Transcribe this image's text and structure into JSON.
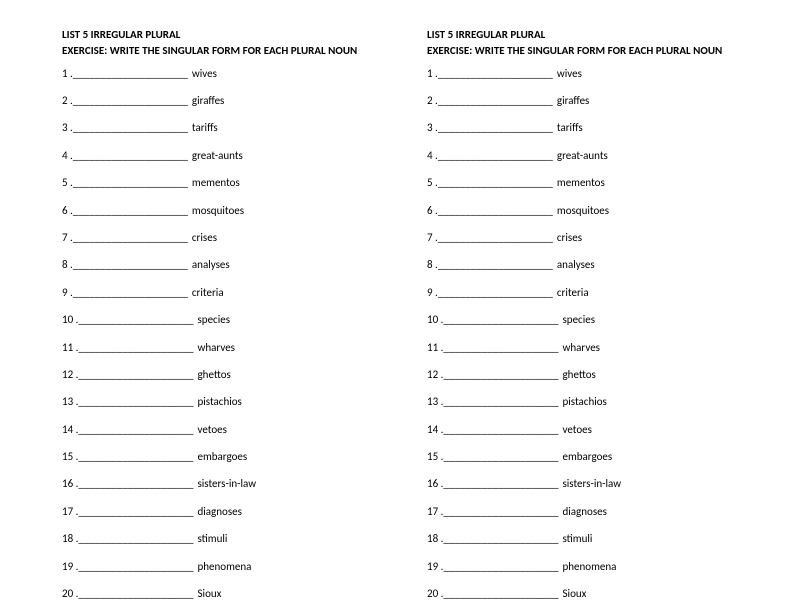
{
  "title": "LIST 5 IRREGULAR PLURAL",
  "subtitle": "EXERCISE: WRITE THE SINGULAR FORM   FOR EACH PLURAL NOUN",
  "blank": "_____________________",
  "items": [
    {
      "num": "1 .",
      "word": "wives"
    },
    {
      "num": "2 .",
      "word": "giraffes"
    },
    {
      "num": "3 .",
      "word": "tariffs"
    },
    {
      "num": "4 .",
      "word": "great-aunts"
    },
    {
      "num": "5 .",
      "word": "mementos"
    },
    {
      "num": "6 .",
      "word": "mosquitoes"
    },
    {
      "num": "7 .",
      "word": "crises"
    },
    {
      "num": "8 .",
      "word": "analyses"
    },
    {
      "num": "9 .",
      "word": "criteria"
    },
    {
      "num": "10 .",
      "word": "species"
    },
    {
      "num": " 11 .",
      "word": "wharves"
    },
    {
      "num": "12 .",
      "word": "ghettos"
    },
    {
      "num": "13 .",
      "word": "pistachios"
    },
    {
      "num": "14 .",
      "word": "vetoes"
    },
    {
      "num": "15 .",
      "word": "embargoes"
    },
    {
      "num": "16 .",
      "word": "sisters-in-law"
    },
    {
      "num": "17 .",
      "word": "diagnoses"
    },
    {
      "num": "18 .",
      "word": "stimuli"
    },
    {
      "num": "19 .",
      "word": "phenomena"
    },
    {
      "num": "20 .",
      "word": "Sioux"
    }
  ]
}
